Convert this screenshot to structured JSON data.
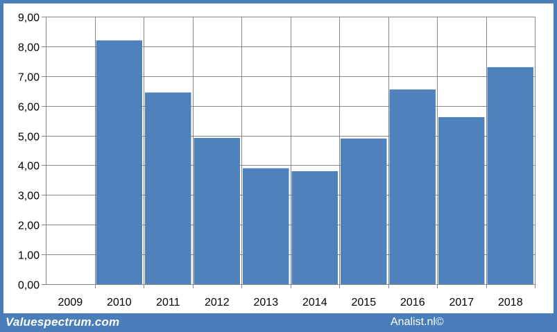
{
  "chart_data": {
    "type": "bar",
    "categories": [
      "2009",
      "2010",
      "2011",
      "2012",
      "2013",
      "2014",
      "2015",
      "2016",
      "2017",
      "2018"
    ],
    "values": [
      null,
      8.2,
      6.45,
      4.92,
      3.9,
      3.8,
      4.9,
      6.55,
      5.62,
      7.3
    ],
    "ylim": [
      0,
      9
    ],
    "yticks": [
      "0,00",
      "1,00",
      "2,00",
      "3,00",
      "4,00",
      "5,00",
      "6,00",
      "7,00",
      "8,00",
      "9,00"
    ],
    "grid": true,
    "bar_color": "#4f81bd",
    "title": "",
    "xlabel": "",
    "ylabel": ""
  },
  "footer": {
    "left": "Valuespectrum.com",
    "right": "Analist.nl©"
  },
  "colors": {
    "frame": "#4a7ebb",
    "bar": "#4f81bd",
    "grid": "#868686"
  }
}
